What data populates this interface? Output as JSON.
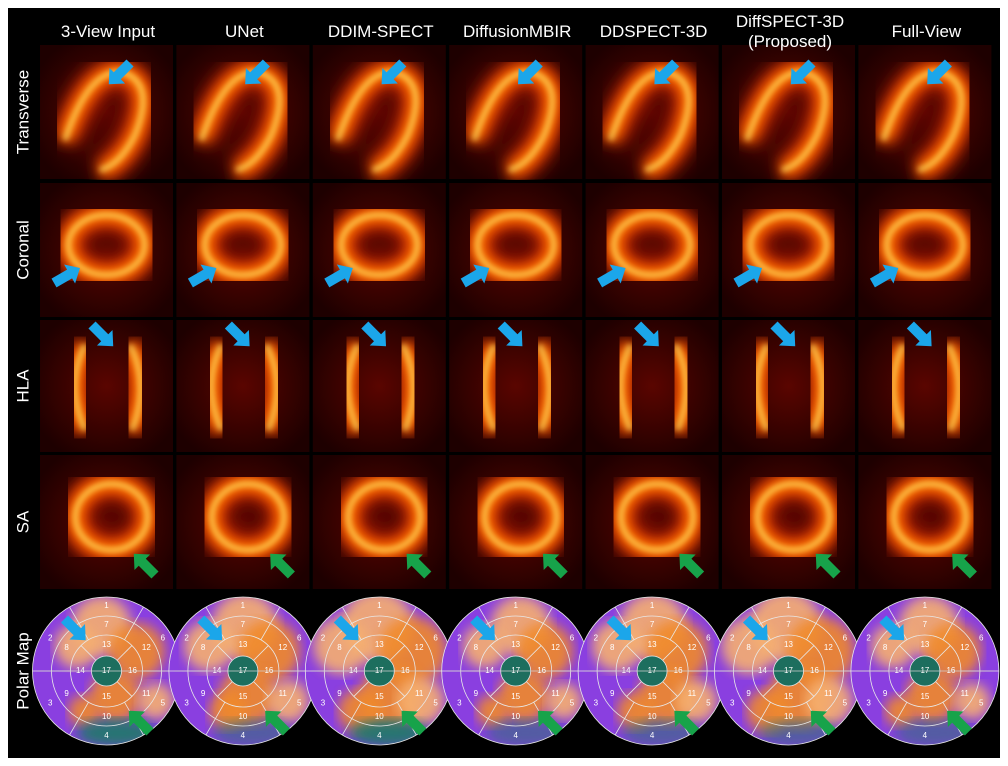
{
  "columns": [
    "3-View Input",
    "UNet",
    "DDIM-SPECT",
    "DiffusionMBIR",
    "DDSPECT-3D",
    "DiffSPECT-3D (Proposed)",
    "Full-View"
  ],
  "rows": [
    "Transverse",
    "Coronal",
    "HLA",
    "SA",
    "Polar Map"
  ],
  "polar_map_segments": [
    "1",
    "2",
    "3",
    "4",
    "5",
    "6",
    "7",
    "8",
    "9",
    "10",
    "11",
    "12",
    "13",
    "14",
    "15",
    "16",
    "17"
  ]
}
